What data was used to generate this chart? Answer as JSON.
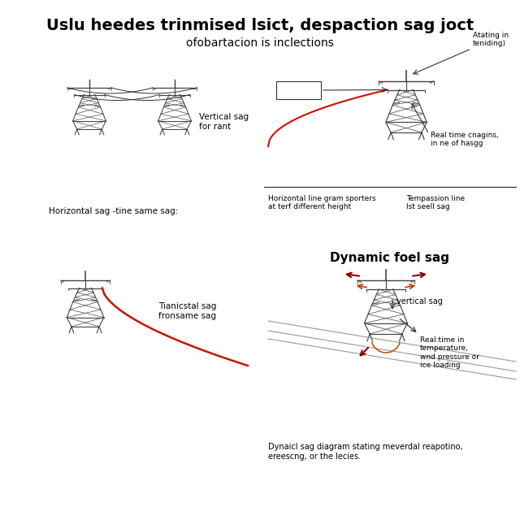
{
  "title": "Uslu heedes trinmised lsict, despaction sag joct",
  "subtitle": "ofobartacion is inclections",
  "title_fontsize": 14,
  "subtitle_fontsize": 10,
  "bg_color": "#ffffff",
  "panel_labels": {
    "top_left_caption": "Horizontal sag -tine same sag:",
    "top_left_label": "Vertical sag\nfor rant",
    "top_right_label1": "Atating in\nteniding)",
    "top_right_label2": "Real time cnagins,\nin ne of hasgg",
    "top_right_caption1": "Horizontal line gram sporters\nat terf different height",
    "top_right_caption2": "Tempassion line\nlst seell sag",
    "bottom_left_label": "Tianicstal sag\nfronsame sag",
    "bottom_right_title": "Dynamic foel sag",
    "bottom_right_label1": "vertical sag",
    "bottom_right_label2": "Real:time in\ntemperature,\nwnd pressure or\nice loading",
    "bottom_right_caption": "Dynaicl sag diagram stating meverdal reapotino,\nereescng, or the lecies."
  },
  "tower_color": "#444444",
  "line_color_red": "#cc1100",
  "line_color_gray": "#999999",
  "line_color_dark": "#333333"
}
